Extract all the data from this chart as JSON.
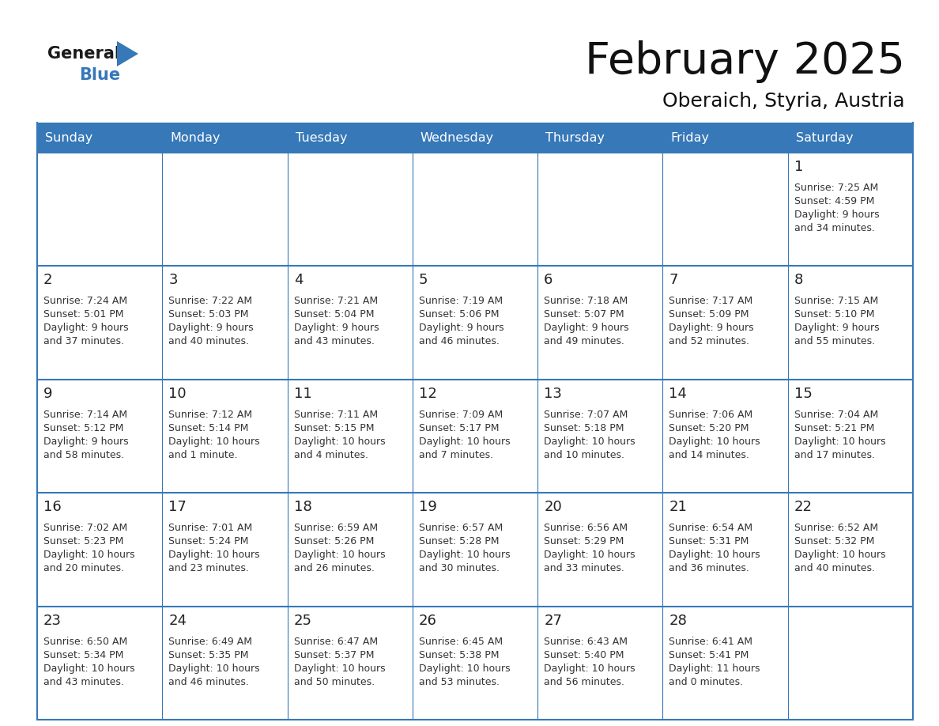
{
  "title": "February 2025",
  "subtitle": "Oberaich, Styria, Austria",
  "header_color": "#3778b8",
  "header_text_color": "#ffffff",
  "days_of_week": [
    "Sunday",
    "Monday",
    "Tuesday",
    "Wednesday",
    "Thursday",
    "Friday",
    "Saturday"
  ],
  "background_color": "#ffffff",
  "cell_bg_even": "#f2f2f2",
  "cell_bg_white": "#ffffff",
  "cell_border_color": "#3778b8",
  "day_number_color": "#222222",
  "info_text_color": "#333333",
  "title_color": "#111111",
  "subtitle_color": "#111111",
  "calendar_data": [
    [
      null,
      null,
      null,
      null,
      null,
      null,
      {
        "day": "1",
        "sunrise": "7:25 AM",
        "sunset": "4:59 PM",
        "daylight_line1": "Daylight: 9 hours",
        "daylight_line2": "and 34 minutes."
      }
    ],
    [
      {
        "day": "2",
        "sunrise": "7:24 AM",
        "sunset": "5:01 PM",
        "daylight_line1": "Daylight: 9 hours",
        "daylight_line2": "and 37 minutes."
      },
      {
        "day": "3",
        "sunrise": "7:22 AM",
        "sunset": "5:03 PM",
        "daylight_line1": "Daylight: 9 hours",
        "daylight_line2": "and 40 minutes."
      },
      {
        "day": "4",
        "sunrise": "7:21 AM",
        "sunset": "5:04 PM",
        "daylight_line1": "Daylight: 9 hours",
        "daylight_line2": "and 43 minutes."
      },
      {
        "day": "5",
        "sunrise": "7:19 AM",
        "sunset": "5:06 PM",
        "daylight_line1": "Daylight: 9 hours",
        "daylight_line2": "and 46 minutes."
      },
      {
        "day": "6",
        "sunrise": "7:18 AM",
        "sunset": "5:07 PM",
        "daylight_line1": "Daylight: 9 hours",
        "daylight_line2": "and 49 minutes."
      },
      {
        "day": "7",
        "sunrise": "7:17 AM",
        "sunset": "5:09 PM",
        "daylight_line1": "Daylight: 9 hours",
        "daylight_line2": "and 52 minutes."
      },
      {
        "day": "8",
        "sunrise": "7:15 AM",
        "sunset": "5:10 PM",
        "daylight_line1": "Daylight: 9 hours",
        "daylight_line2": "and 55 minutes."
      }
    ],
    [
      {
        "day": "9",
        "sunrise": "7:14 AM",
        "sunset": "5:12 PM",
        "daylight_line1": "Daylight: 9 hours",
        "daylight_line2": "and 58 minutes."
      },
      {
        "day": "10",
        "sunrise": "7:12 AM",
        "sunset": "5:14 PM",
        "daylight_line1": "Daylight: 10 hours",
        "daylight_line2": "and 1 minute."
      },
      {
        "day": "11",
        "sunrise": "7:11 AM",
        "sunset": "5:15 PM",
        "daylight_line1": "Daylight: 10 hours",
        "daylight_line2": "and 4 minutes."
      },
      {
        "day": "12",
        "sunrise": "7:09 AM",
        "sunset": "5:17 PM",
        "daylight_line1": "Daylight: 10 hours",
        "daylight_line2": "and 7 minutes."
      },
      {
        "day": "13",
        "sunrise": "7:07 AM",
        "sunset": "5:18 PM",
        "daylight_line1": "Daylight: 10 hours",
        "daylight_line2": "and 10 minutes."
      },
      {
        "day": "14",
        "sunrise": "7:06 AM",
        "sunset": "5:20 PM",
        "daylight_line1": "Daylight: 10 hours",
        "daylight_line2": "and 14 minutes."
      },
      {
        "day": "15",
        "sunrise": "7:04 AM",
        "sunset": "5:21 PM",
        "daylight_line1": "Daylight: 10 hours",
        "daylight_line2": "and 17 minutes."
      }
    ],
    [
      {
        "day": "16",
        "sunrise": "7:02 AM",
        "sunset": "5:23 PM",
        "daylight_line1": "Daylight: 10 hours",
        "daylight_line2": "and 20 minutes."
      },
      {
        "day": "17",
        "sunrise": "7:01 AM",
        "sunset": "5:24 PM",
        "daylight_line1": "Daylight: 10 hours",
        "daylight_line2": "and 23 minutes."
      },
      {
        "day": "18",
        "sunrise": "6:59 AM",
        "sunset": "5:26 PM",
        "daylight_line1": "Daylight: 10 hours",
        "daylight_line2": "and 26 minutes."
      },
      {
        "day": "19",
        "sunrise": "6:57 AM",
        "sunset": "5:28 PM",
        "daylight_line1": "Daylight: 10 hours",
        "daylight_line2": "and 30 minutes."
      },
      {
        "day": "20",
        "sunrise": "6:56 AM",
        "sunset": "5:29 PM",
        "daylight_line1": "Daylight: 10 hours",
        "daylight_line2": "and 33 minutes."
      },
      {
        "day": "21",
        "sunrise": "6:54 AM",
        "sunset": "5:31 PM",
        "daylight_line1": "Daylight: 10 hours",
        "daylight_line2": "and 36 minutes."
      },
      {
        "day": "22",
        "sunrise": "6:52 AM",
        "sunset": "5:32 PM",
        "daylight_line1": "Daylight: 10 hours",
        "daylight_line2": "and 40 minutes."
      }
    ],
    [
      {
        "day": "23",
        "sunrise": "6:50 AM",
        "sunset": "5:34 PM",
        "daylight_line1": "Daylight: 10 hours",
        "daylight_line2": "and 43 minutes."
      },
      {
        "day": "24",
        "sunrise": "6:49 AM",
        "sunset": "5:35 PM",
        "daylight_line1": "Daylight: 10 hours",
        "daylight_line2": "and 46 minutes."
      },
      {
        "day": "25",
        "sunrise": "6:47 AM",
        "sunset": "5:37 PM",
        "daylight_line1": "Daylight: 10 hours",
        "daylight_line2": "and 50 minutes."
      },
      {
        "day": "26",
        "sunrise": "6:45 AM",
        "sunset": "5:38 PM",
        "daylight_line1": "Daylight: 10 hours",
        "daylight_line2": "and 53 minutes."
      },
      {
        "day": "27",
        "sunrise": "6:43 AM",
        "sunset": "5:40 PM",
        "daylight_line1": "Daylight: 10 hours",
        "daylight_line2": "and 56 minutes."
      },
      {
        "day": "28",
        "sunrise": "6:41 AM",
        "sunset": "5:41 PM",
        "daylight_line1": "Daylight: 11 hours",
        "daylight_line2": "and 0 minutes."
      },
      null
    ]
  ],
  "logo_general_color": "#1a1a1a",
  "logo_blue_color": "#3778b8",
  "logo_triangle_color": "#3778b8"
}
